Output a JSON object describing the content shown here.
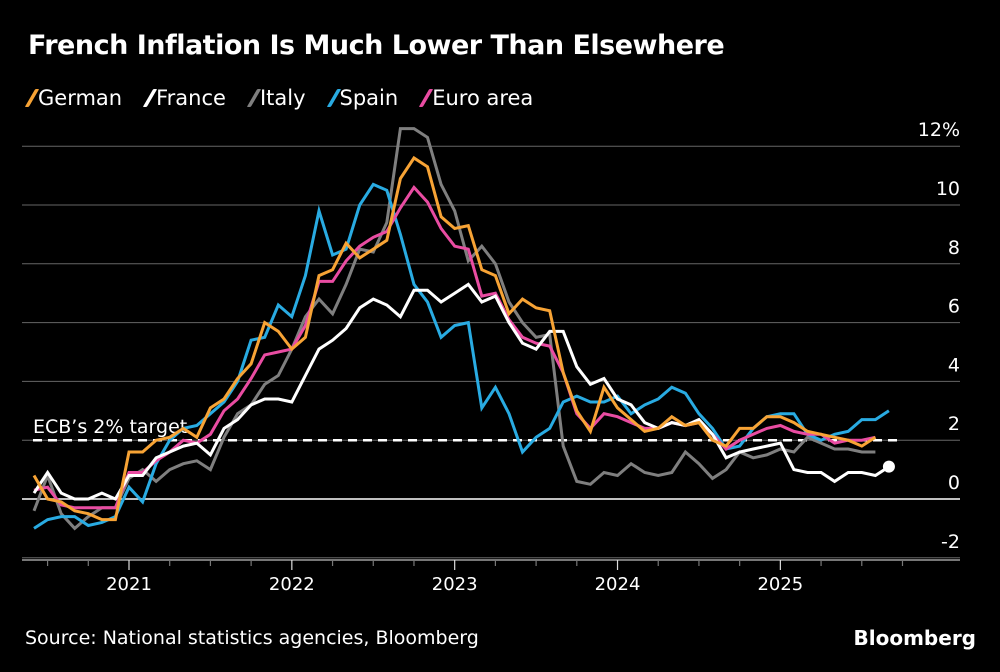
{
  "chart_data": {
    "type": "line",
    "title": "French Inflation Is Much Lower Than Elsewhere",
    "xlabel": "",
    "ylabel": "",
    "y_unit": "%",
    "ylim": [
      -2,
      12
    ],
    "yticks": [
      -2,
      0,
      2,
      4,
      6,
      8,
      10,
      12
    ],
    "ytick_labels": [
      "-2",
      "0",
      "2",
      "4",
      "6",
      "8",
      "10",
      "12%"
    ],
    "xticks": [
      "2021",
      "2022",
      "2023",
      "2024",
      "2025"
    ],
    "x_start": "2020-06",
    "x_frequency": "monthly",
    "grid": true,
    "legend_position": "top-left",
    "reference_line": {
      "value": 2,
      "label": "ECB’s 2% target",
      "style": "dashed",
      "color": "#ffffff"
    },
    "series": [
      {
        "name": "German",
        "color": "#f7a335",
        "values": [
          0.8,
          0.0,
          -0.1,
          -0.4,
          -0.5,
          -0.7,
          -0.7,
          1.6,
          1.6,
          2.0,
          2.1,
          2.4,
          2.1,
          3.1,
          3.4,
          4.1,
          4.6,
          6.0,
          5.7,
          5.1,
          5.5,
          7.6,
          7.8,
          8.7,
          8.2,
          8.5,
          8.8,
          10.9,
          11.6,
          11.3,
          9.6,
          9.2,
          9.3,
          7.8,
          7.6,
          6.3,
          6.8,
          6.5,
          6.4,
          4.3,
          3.0,
          2.3,
          3.8,
          3.1,
          2.7,
          2.3,
          2.4,
          2.8,
          2.5,
          2.6,
          2.0,
          1.8,
          2.4,
          2.4,
          2.8,
          2.8,
          2.6,
          2.3,
          2.2,
          2.1,
          2.0,
          1.8,
          2.1
        ]
      },
      {
        "name": "France",
        "color": "#ffffff",
        "values": [
          0.2,
          0.9,
          0.2,
          0.0,
          0.0,
          0.2,
          0.0,
          0.8,
          0.8,
          1.4,
          1.6,
          1.8,
          1.9,
          1.5,
          2.4,
          2.7,
          3.2,
          3.4,
          3.4,
          3.3,
          4.2,
          5.1,
          5.4,
          5.8,
          6.5,
          6.8,
          6.6,
          6.2,
          7.1,
          7.1,
          6.7,
          7.0,
          7.3,
          6.7,
          6.9,
          6.0,
          5.3,
          5.1,
          5.7,
          5.7,
          4.5,
          3.9,
          4.1,
          3.4,
          3.2,
          2.6,
          2.4,
          2.6,
          2.5,
          2.7,
          2.2,
          1.4,
          1.6,
          1.7,
          1.8,
          1.9,
          1.0,
          0.9,
          0.9,
          0.6,
          0.9,
          0.9,
          0.8,
          1.1
        ]
      },
      {
        "name": "Italy",
        "color": "#7f7f7f",
        "values": [
          -0.4,
          0.8,
          -0.5,
          -1.0,
          -0.6,
          -0.3,
          -0.3,
          0.7,
          1.0,
          0.6,
          1.0,
          1.2,
          1.3,
          1.0,
          2.1,
          2.9,
          3.2,
          3.9,
          4.2,
          5.1,
          6.2,
          6.8,
          6.3,
          7.3,
          8.5,
          8.4,
          9.4,
          12.6,
          12.6,
          12.3,
          10.7,
          9.8,
          8.1,
          8.6,
          8.0,
          6.7,
          6.0,
          5.5,
          5.6,
          1.8,
          0.6,
          0.5,
          0.9,
          0.8,
          1.2,
          0.9,
          0.8,
          0.9,
          1.6,
          1.2,
          0.7,
          1.0,
          1.6,
          1.4,
          1.5,
          1.7,
          1.6,
          2.1,
          1.9,
          1.7,
          1.7,
          1.6,
          1.6
        ]
      },
      {
        "name": "Spain",
        "color": "#29abe2",
        "values": [
          -1.0,
          -0.7,
          -0.6,
          -0.6,
          -0.9,
          -0.8,
          -0.6,
          0.4,
          -0.1,
          1.2,
          2.0,
          2.4,
          2.5,
          2.9,
          3.3,
          4.0,
          5.4,
          5.5,
          6.6,
          6.2,
          7.6,
          9.8,
          8.3,
          8.5,
          10.0,
          10.7,
          10.5,
          9.0,
          7.3,
          6.7,
          5.5,
          5.9,
          6.0,
          3.1,
          3.8,
          2.9,
          1.6,
          2.1,
          2.4,
          3.3,
          3.5,
          3.3,
          3.3,
          3.5,
          2.9,
          3.2,
          3.4,
          3.8,
          3.6,
          2.9,
          2.4,
          1.7,
          1.8,
          2.4,
          2.8,
          2.9,
          2.9,
          2.2,
          2.0,
          2.2,
          2.3,
          2.7,
          2.7,
          3.0
        ]
      },
      {
        "name": "Euro area",
        "color": "#e94ca2",
        "values": [
          0.3,
          0.4,
          -0.2,
          -0.3,
          -0.3,
          -0.3,
          -0.3,
          0.9,
          0.9,
          1.3,
          1.6,
          2.0,
          1.9,
          2.2,
          3.0,
          3.4,
          4.1,
          4.9,
          5.0,
          5.1,
          5.9,
          7.4,
          7.4,
          8.1,
          8.6,
          8.9,
          9.1,
          9.9,
          10.6,
          10.1,
          9.2,
          8.6,
          8.5,
          6.9,
          7.0,
          6.1,
          5.5,
          5.3,
          5.2,
          4.3,
          2.9,
          2.4,
          2.9,
          2.8,
          2.6,
          2.4,
          2.4,
          2.6,
          2.5,
          2.6,
          2.2,
          1.7,
          2.0,
          2.2,
          2.4,
          2.5,
          2.3,
          2.2,
          2.2,
          1.9,
          2.0,
          2.0,
          2.1
        ]
      }
    ],
    "end_marker": {
      "series": "France",
      "shape": "circle"
    }
  },
  "legend": [
    {
      "label": "German",
      "color": "#f7a335"
    },
    {
      "label": "France",
      "color": "#ffffff"
    },
    {
      "label": "Italy",
      "color": "#7f7f7f"
    },
    {
      "label": "Spain",
      "color": "#29abe2"
    },
    {
      "label": "Euro area",
      "color": "#e94ca2"
    }
  ],
  "footer": {
    "source": "Source: National statistics agencies, Bloomberg",
    "brand": "Bloomberg"
  }
}
